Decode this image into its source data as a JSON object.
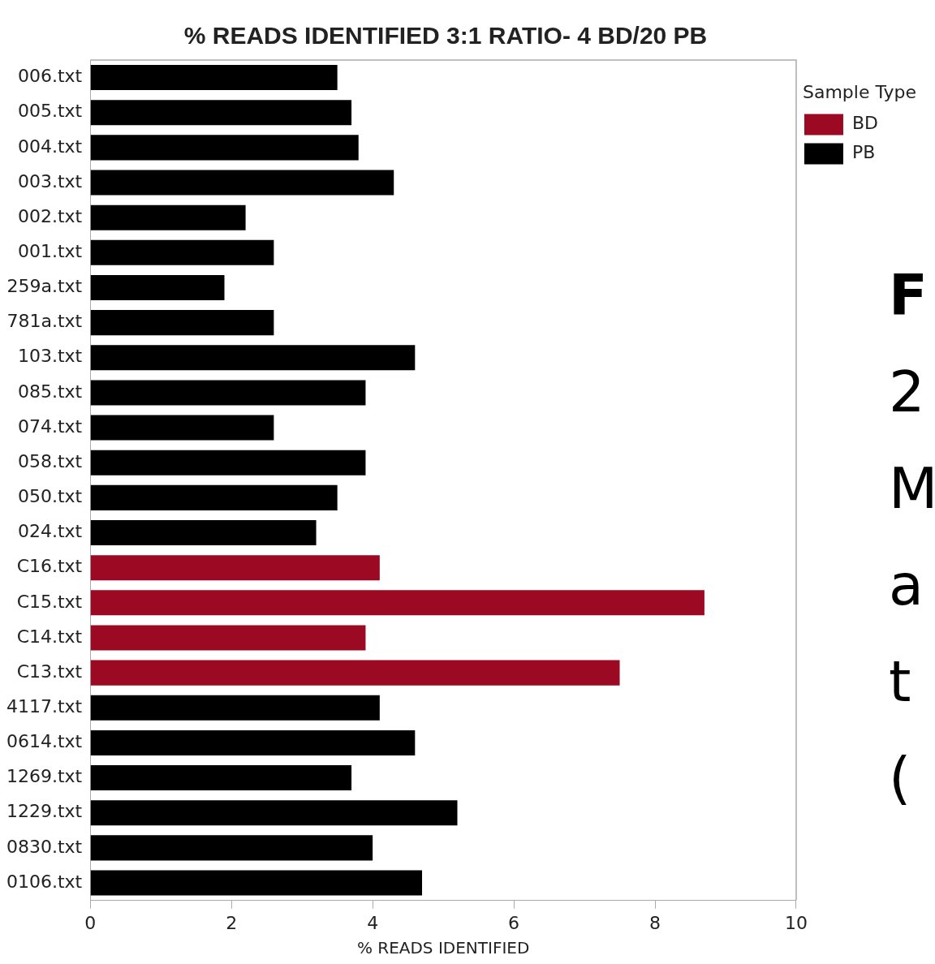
{
  "chart_data": {
    "type": "bar",
    "orientation": "horizontal",
    "title": "% READS IDENTIFIED 3:1 RATIO- 4 BD/20 PB",
    "xlabel": "% READS IDENTIFIED",
    "legend_title": "Sample Type",
    "legend": "top right",
    "grid": false,
    "categories": [
      "006.txt",
      "005.txt",
      "004.txt",
      "003.txt",
      "002.txt",
      "001.txt",
      "259a.txt",
      "781a.txt",
      "103.txt",
      "085.txt",
      "074.txt",
      "058.txt",
      "050.txt",
      "024.txt",
      "C16.txt",
      "C15.txt",
      "C14.txt",
      "C13.txt",
      "4117.txt",
      "0614.txt",
      "1269.txt",
      "1229.txt",
      "0830.txt",
      "0106.txt"
    ],
    "series": [
      {
        "name": "BD",
        "color": "#9b0a22",
        "values": [
          null,
          null,
          null,
          null,
          null,
          null,
          null,
          null,
          null,
          null,
          null,
          null,
          null,
          null,
          4.1,
          8.7,
          3.9,
          7.5,
          null,
          null,
          null,
          null,
          null,
          null
        ]
      },
      {
        "name": "PB",
        "color": "#000000",
        "values": [
          3.5,
          3.7,
          3.8,
          4.3,
          2.2,
          2.6,
          1.9,
          2.6,
          4.6,
          3.9,
          2.6,
          3.9,
          3.5,
          3.2,
          null,
          null,
          null,
          null,
          4.1,
          4.6,
          3.7,
          5.2,
          4.0,
          4.7
        ]
      }
    ],
    "xlim": [
      0,
      10
    ],
    "xticks": [
      0,
      2,
      4,
      6,
      8,
      10
    ],
    "annotations": [
      "F",
      "2",
      "M",
      "a",
      "t",
      "("
    ]
  }
}
